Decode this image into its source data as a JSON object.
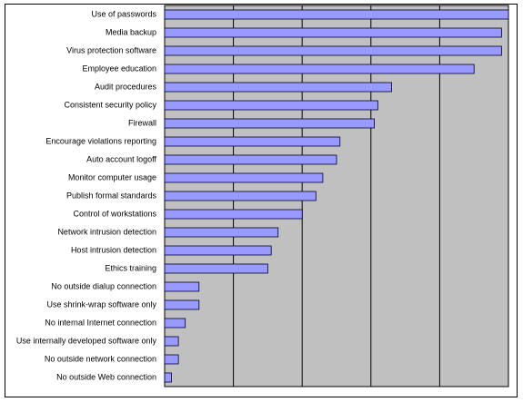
{
  "chart_data": {
    "type": "bar",
    "orientation": "horizontal",
    "categories": [
      "Use of passwords",
      "Media backup",
      "Virus protection software",
      "Employee education",
      "Audit procedures",
      "Consistent security policy",
      "Firewall",
      "Encourage violations reporting",
      "Auto account logoff",
      "Monitor computer usage",
      "Publish formal standards",
      "Control of workstations",
      "Network intrusion detection",
      "Host intrusion detection",
      "Ethics training",
      "No outside dialup connection",
      "Use shrink-wrap software only",
      "No internal Internet connection",
      "Use internally developed software only",
      "No outside network connection",
      "No outside Web connection"
    ],
    "values": [
      100,
      98,
      98,
      90,
      66,
      62,
      61,
      51,
      50,
      46,
      44,
      40,
      33,
      31,
      30,
      10,
      10,
      6,
      4,
      4,
      2
    ],
    "color": "#9999ff",
    "plot_background": "#c0c0c0",
    "xlim": [
      0,
      100
    ],
    "xticks": [
      0,
      20,
      40,
      60,
      80,
      100
    ],
    "grid": true
  }
}
